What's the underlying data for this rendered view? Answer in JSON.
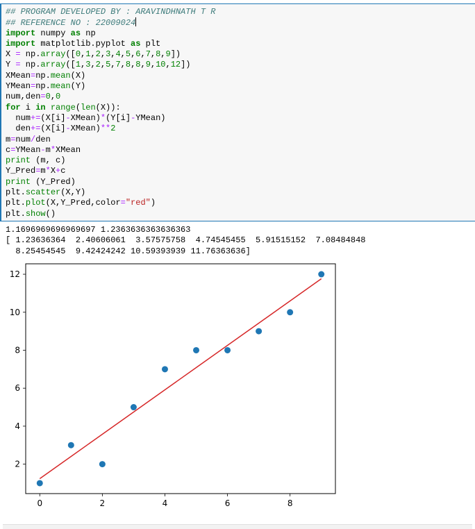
{
  "code_cell": {
    "lines": [
      "## PROGRAM DEVELOPED BY : ARAVINDHNATH T R",
      "## REFERENCE NO : 22009024",
      "import numpy as np",
      "import matplotlib.pyplot as plt",
      "X = np.array([0,1,2,3,4,5,6,7,8,9])",
      "Y = np.array([1,3,2,5,7,8,8,9,10,12])",
      "XMean=np.mean(X)",
      "YMean=np.mean(Y)",
      "num,den=0,0",
      "for i in range(len(X)):",
      "  num+=(X[i]-XMean)*(Y[i]-YMean)",
      "  den+=(X[i]-XMean)**2",
      "m=num/den",
      "c=YMean-m*XMean",
      "print (m, c)",
      "Y_Pred=m*X+c",
      "print (Y_Pred)",
      "plt.scatter(X,Y)",
      "plt.plot(X,Y_Pred,color=\"red\")",
      "plt.show()"
    ]
  },
  "output": {
    "line1": "1.1696969696969697 1.2363636363636363",
    "line2": "[ 1.23636364  2.40606061  3.57575758  4.74545455  5.91515152  7.08484848",
    "line3": "  8.25454545  9.42424242 10.59393939 11.76363636]"
  },
  "chart_data": {
    "type": "scatter",
    "x": [
      0,
      1,
      2,
      3,
      4,
      5,
      6,
      7,
      8,
      9
    ],
    "y": [
      1,
      3,
      2,
      5,
      7,
      8,
      8,
      9,
      10,
      12
    ],
    "line_y": [
      1.23636364,
      2.40606061,
      3.57575758,
      4.74545455,
      5.91515152,
      7.08484848,
      8.25454545,
      9.42424242,
      10.59393939,
      11.76363636
    ],
    "xticks": [
      0,
      2,
      4,
      6,
      8
    ],
    "yticks": [
      2,
      4,
      6,
      8,
      10,
      12
    ],
    "xlim": [
      -0.45,
      9.45
    ],
    "ylim": [
      0.45,
      12.55
    ],
    "point_color": "#1f77b4",
    "line_color": "#d62728",
    "grid": false
  }
}
